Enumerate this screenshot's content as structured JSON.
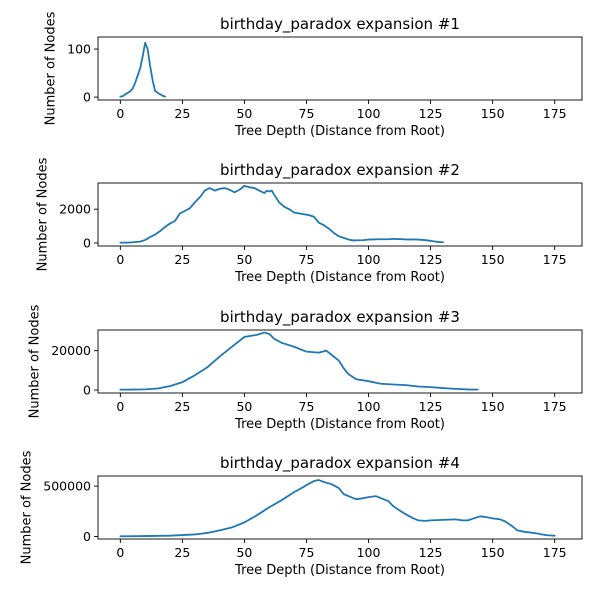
{
  "figure": {
    "background": "#ffffff",
    "line_color": "#1f77b4"
  },
  "chart_data": [
    {
      "type": "line",
      "title": "birthday_paradox expansion #1",
      "xlabel": "Tree Depth (Distance from Root)",
      "ylabel": "Number of Nodes",
      "xlim": [
        -9,
        186
      ],
      "ylim": [
        -6,
        125
      ],
      "xticks": [
        0,
        25,
        50,
        75,
        100,
        125,
        150,
        175
      ],
      "yticks": [
        0,
        100
      ],
      "ytick_labels": [
        "0",
        "100"
      ],
      "grid": false,
      "series": [
        {
          "x": [
            0,
            1,
            2,
            3,
            4,
            5,
            6,
            7,
            8,
            9,
            10,
            11,
            12,
            13,
            14,
            15,
            16,
            17,
            18
          ],
          "y": [
            1,
            2,
            6,
            9,
            12,
            18,
            30,
            45,
            60,
            85,
            113,
            100,
            65,
            35,
            13,
            9,
            6,
            3,
            1
          ]
        }
      ]
    },
    {
      "type": "line",
      "title": "birthday_paradox expansion #2",
      "xlabel": "Tree Depth (Distance from Root)",
      "ylabel": "Number of Nodes",
      "xlim": [
        -9,
        186
      ],
      "ylim": [
        -180,
        3550
      ],
      "xticks": [
        0,
        25,
        50,
        75,
        100,
        125,
        150,
        175
      ],
      "yticks": [
        0,
        2000
      ],
      "ytick_labels": [
        "0",
        "2000"
      ],
      "grid": false,
      "series": [
        {
          "x": [
            0,
            3,
            5,
            8,
            10,
            12,
            14,
            16,
            18,
            20,
            22,
            24,
            26,
            28,
            30,
            32,
            34,
            36,
            38,
            40,
            42,
            44,
            46,
            48,
            50,
            52,
            54,
            56,
            58,
            59,
            60,
            61,
            62,
            64,
            66,
            68,
            70,
            72,
            74,
            76,
            78,
            80,
            82,
            84,
            86,
            88,
            90,
            92,
            94,
            96,
            98,
            100,
            104,
            108,
            110,
            112,
            114,
            116,
            118,
            120,
            122,
            124,
            126,
            128,
            130
          ],
          "y": [
            20,
            25,
            40,
            80,
            180,
            350,
            500,
            700,
            950,
            1150,
            1300,
            1750,
            1900,
            2050,
            2400,
            2700,
            3100,
            3250,
            3100,
            3200,
            3250,
            3150,
            3000,
            3150,
            3380,
            3300,
            3250,
            3100,
            2950,
            3100,
            3050,
            3100,
            2850,
            2400,
            2150,
            2000,
            1800,
            1750,
            1700,
            1650,
            1550,
            1200,
            1050,
            850,
            600,
            400,
            300,
            200,
            150,
            160,
            170,
            200,
            220,
            220,
            240,
            230,
            220,
            200,
            210,
            200,
            180,
            150,
            100,
            60,
            40
          ]
        }
      ]
    },
    {
      "type": "line",
      "title": "birthday_paradox expansion #3",
      "xlabel": "Tree Depth (Distance from Root)",
      "ylabel": "Number of Nodes",
      "xlim": [
        -9,
        186
      ],
      "ylim": [
        -1500,
        30500
      ],
      "xticks": [
        0,
        25,
        50,
        75,
        100,
        125,
        150,
        175
      ],
      "yticks": [
        0,
        20000
      ],
      "ytick_labels": [
        "0",
        "20000"
      ],
      "grid": false,
      "series": [
        {
          "x": [
            0,
            5,
            10,
            15,
            20,
            25,
            30,
            35,
            40,
            45,
            50,
            55,
            58,
            60,
            62,
            65,
            70,
            75,
            80,
            83,
            85,
            88,
            90,
            92,
            95,
            100,
            105,
            110,
            115,
            120,
            125,
            130,
            135,
            140,
            144
          ],
          "y": [
            200,
            250,
            350,
            800,
            2000,
            4000,
            7500,
            11500,
            17000,
            22000,
            27000,
            28000,
            29200,
            28500,
            26000,
            24000,
            22000,
            19500,
            19000,
            20000,
            18000,
            15000,
            11000,
            8000,
            5500,
            4500,
            3200,
            2800,
            2500,
            1800,
            1500,
            1000,
            600,
            300,
            200
          ]
        }
      ]
    },
    {
      "type": "line",
      "title": "birthday_paradox expansion #4",
      "xlabel": "Tree Depth (Distance from Root)",
      "ylabel": "Number of Nodes",
      "xlim": [
        -9,
        186
      ],
      "ylim": [
        -25000,
        600000
      ],
      "xticks": [
        0,
        25,
        50,
        75,
        100,
        125,
        150,
        175
      ],
      "yticks": [
        0,
        500000
      ],
      "ytick_labels": [
        "0",
        "500000"
      ],
      "grid": false,
      "series": [
        {
          "x": [
            0,
            10,
            20,
            30,
            35,
            40,
            45,
            50,
            55,
            60,
            65,
            70,
            73,
            75,
            78,
            80,
            82,
            85,
            88,
            90,
            93,
            95,
            98,
            100,
            103,
            105,
            108,
            110,
            113,
            115,
            118,
            120,
            123,
            125,
            130,
            135,
            138,
            140,
            143,
            145,
            148,
            150,
            153,
            155,
            158,
            160,
            163,
            165,
            168,
            170,
            172,
            175
          ],
          "y": [
            2000,
            4000,
            8000,
            20000,
            35000,
            60000,
            90000,
            140000,
            210000,
            290000,
            360000,
            440000,
            480000,
            510000,
            550000,
            560000,
            540000,
            520000,
            480000,
            420000,
            390000,
            370000,
            380000,
            390000,
            400000,
            380000,
            350000,
            300000,
            250000,
            220000,
            180000,
            160000,
            155000,
            160000,
            165000,
            170000,
            160000,
            160000,
            185000,
            200000,
            190000,
            180000,
            170000,
            150000,
            100000,
            60000,
            45000,
            40000,
            30000,
            20000,
            12000,
            8000
          ]
        }
      ]
    }
  ]
}
